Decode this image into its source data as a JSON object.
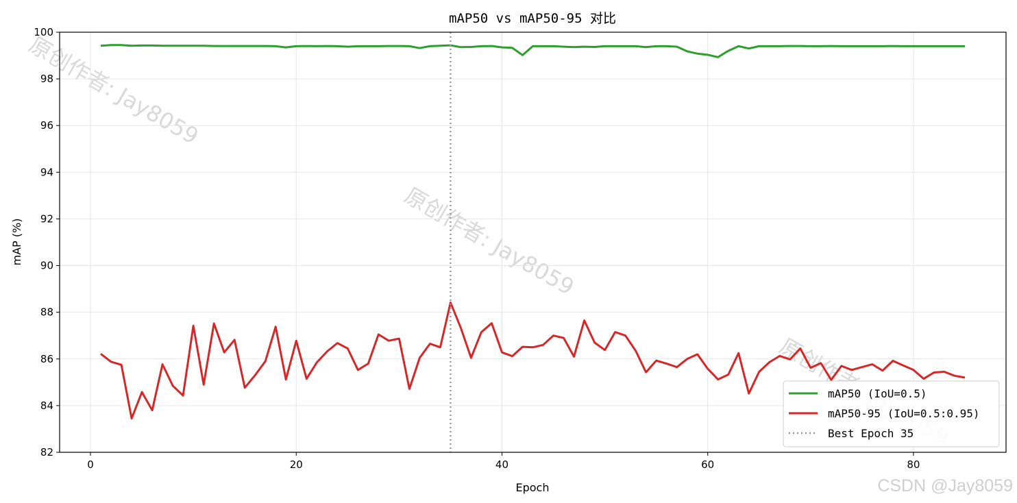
{
  "chart_data": {
    "type": "line",
    "title": "mAP50 vs mAP50-95 对比",
    "xlabel": "Epoch",
    "ylabel": "mAP (%)",
    "xlim": [
      -3,
      89
    ],
    "ylim": [
      82,
      100
    ],
    "xticks": [
      0,
      20,
      40,
      60,
      80
    ],
    "yticks": [
      82,
      84,
      86,
      88,
      90,
      92,
      94,
      96,
      98,
      100
    ],
    "grid": true,
    "legend_position": "lower-right",
    "x": [
      1,
      2,
      3,
      4,
      5,
      6,
      7,
      8,
      9,
      10,
      11,
      12,
      13,
      14,
      15,
      16,
      17,
      18,
      19,
      20,
      21,
      22,
      23,
      24,
      25,
      26,
      27,
      28,
      29,
      30,
      31,
      32,
      33,
      34,
      35,
      36,
      37,
      38,
      39,
      40,
      41,
      42,
      43,
      44,
      45,
      46,
      47,
      48,
      49,
      50,
      51,
      52,
      53,
      54,
      55,
      56,
      57,
      58,
      59,
      60,
      61,
      62,
      63,
      64,
      65,
      66,
      67,
      68,
      69,
      70,
      71,
      72,
      73,
      74,
      75,
      76,
      77,
      78,
      79,
      80,
      81,
      82,
      83,
      84,
      85
    ],
    "series": [
      {
        "name": "mAP50 (IoU=0.5)",
        "color": "#2ca02c",
        "values": [
          99.42,
          99.45,
          99.45,
          99.42,
          99.43,
          99.43,
          99.42,
          99.42,
          99.42,
          99.42,
          99.42,
          99.41,
          99.41,
          99.41,
          99.41,
          99.41,
          99.41,
          99.4,
          99.35,
          99.4,
          99.41,
          99.4,
          99.41,
          99.4,
          99.38,
          99.4,
          99.4,
          99.4,
          99.41,
          99.41,
          99.4,
          99.32,
          99.4,
          99.42,
          99.44,
          99.36,
          99.37,
          99.4,
          99.41,
          99.35,
          99.33,
          99.02,
          99.4,
          99.4,
          99.4,
          99.38,
          99.36,
          99.38,
          99.37,
          99.4,
          99.4,
          99.4,
          99.4,
          99.36,
          99.4,
          99.4,
          99.38,
          99.18,
          99.08,
          99.03,
          98.93,
          99.2,
          99.4,
          99.3,
          99.4,
          99.4,
          99.4,
          99.41,
          99.41,
          99.4,
          99.4,
          99.41,
          99.4,
          99.4,
          99.4,
          99.4,
          99.4,
          99.41,
          99.4,
          99.4,
          99.4,
          99.4,
          99.4,
          99.4,
          99.4
        ]
      },
      {
        "name": "mAP50-95 (IoU=0.5:0.95)",
        "color": "#d62728",
        "values": [
          86.22,
          85.88,
          85.75,
          83.45,
          84.58,
          83.8,
          85.77,
          84.85,
          84.43,
          87.42,
          84.9,
          87.52,
          86.28,
          86.82,
          84.77,
          85.3,
          85.9,
          87.38,
          85.12,
          86.78,
          85.15,
          85.85,
          86.32,
          86.68,
          86.45,
          85.53,
          85.8,
          87.05,
          86.78,
          86.87,
          84.72,
          86.05,
          86.65,
          86.5,
          88.42,
          87.33,
          86.05,
          87.15,
          87.53,
          86.28,
          86.12,
          86.52,
          86.5,
          86.6,
          87.0,
          86.9,
          86.1,
          87.65,
          86.7,
          86.38,
          87.15,
          87.0,
          86.35,
          85.43,
          85.93,
          85.8,
          85.65,
          86.0,
          86.2,
          85.58,
          85.12,
          85.33,
          86.25,
          84.52,
          85.45,
          85.86,
          86.13,
          85.98,
          86.45,
          85.62,
          85.82,
          85.1,
          85.7,
          85.53,
          85.65,
          85.77,
          85.5,
          85.92,
          85.72,
          85.53,
          85.15,
          85.42,
          85.45,
          85.28,
          85.2
        ]
      }
    ],
    "vline": {
      "x": 35,
      "label": "Best Epoch 35",
      "color": "#999999",
      "style": "dotted"
    }
  },
  "watermarks": {
    "text": "原创作者: Jay8059",
    "csdn": "CSDN @Jay8059"
  }
}
